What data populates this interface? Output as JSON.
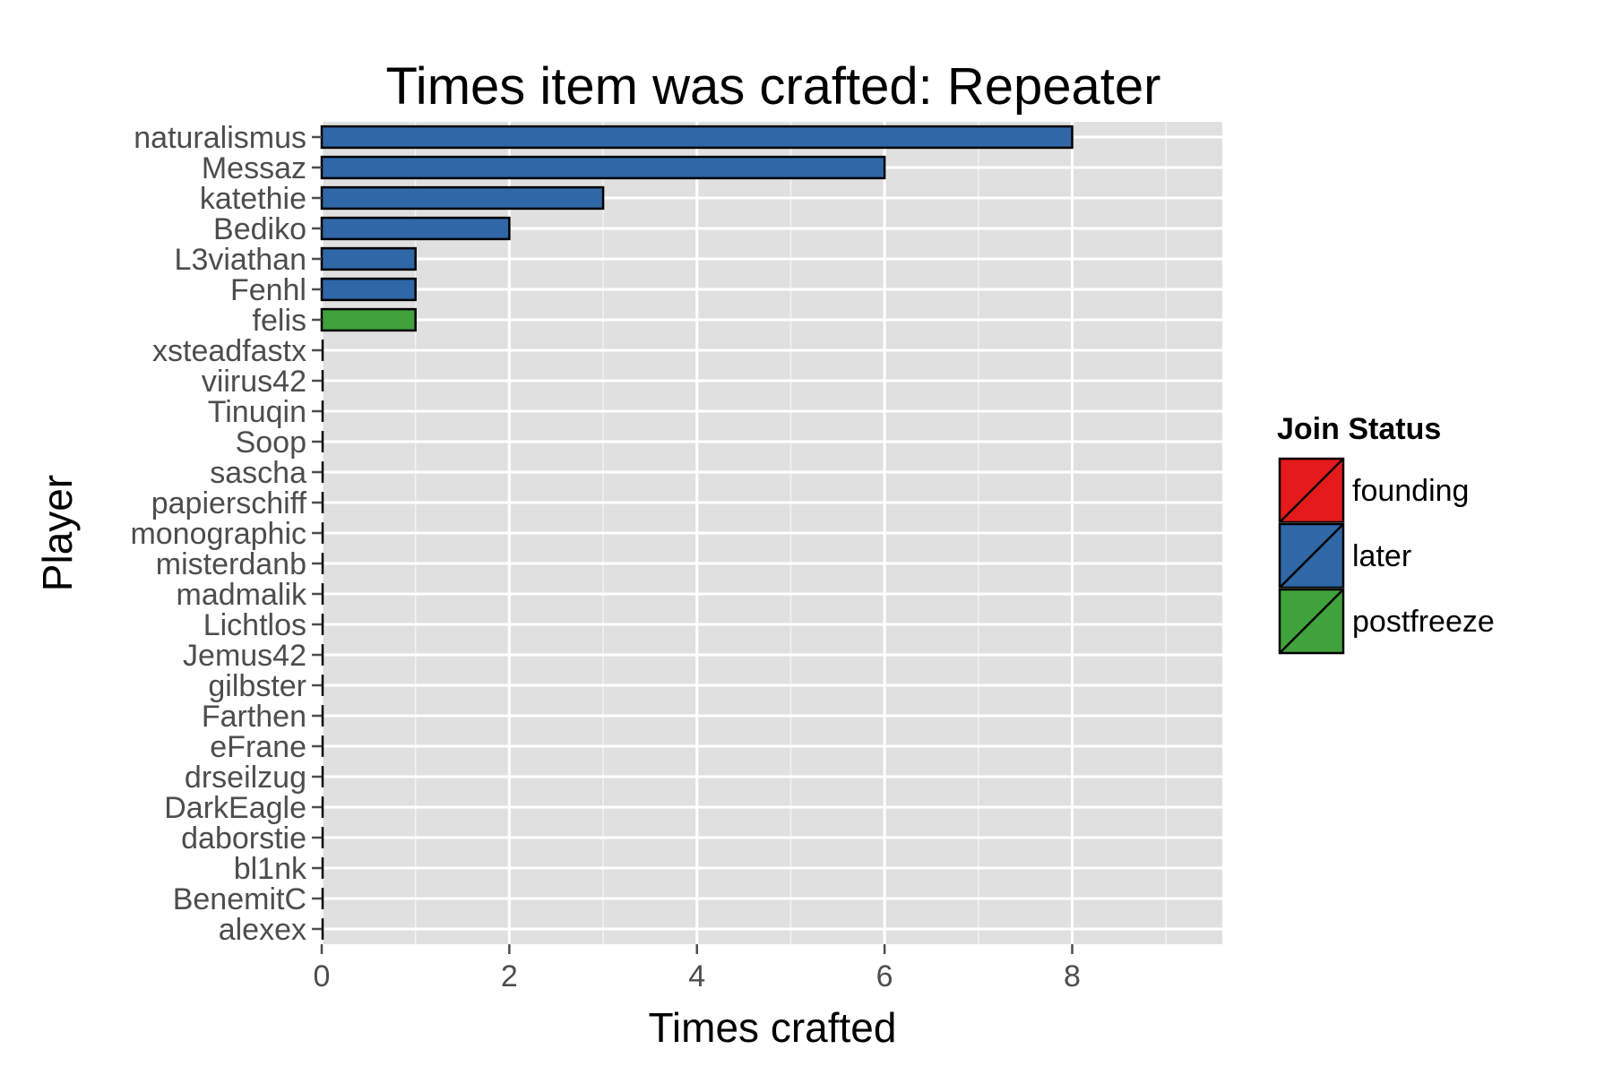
{
  "chart_data": {
    "type": "bar",
    "orientation": "horizontal",
    "title": "Times item was crafted: Repeater",
    "xlabel": "Times crafted",
    "ylabel": "Player",
    "xlim": [
      0,
      9.6
    ],
    "xticks": [
      0,
      2,
      4,
      6,
      8
    ],
    "grid": true,
    "legend_placement": "right",
    "legend_title": "Join Status",
    "groups": [
      {
        "name": "founding",
        "color": "#E41A1C"
      },
      {
        "name": "later",
        "color": "#2F67A7"
      },
      {
        "name": "postfreeze",
        "color": "#3FA23A"
      }
    ],
    "categories": [
      "naturalismus",
      "Messaz",
      "katethie",
      "Bediko",
      "L3viathan",
      "Fenhl",
      "felis",
      "xsteadfastx",
      "viirus42",
      "Tinuqin",
      "Soop",
      "sascha",
      "papierschiff",
      "monographic",
      "misterdanb",
      "madmalik",
      "Lichtlos",
      "Jemus42",
      "gilbster",
      "Farthen",
      "eFrane",
      "drseilzug",
      "DarkEagle",
      "daborstie",
      "bl1nk",
      "BenemitC",
      "alexex"
    ],
    "values": [
      8,
      6,
      3,
      2,
      1,
      1,
      1,
      0,
      0,
      0,
      0,
      0,
      0,
      0,
      0,
      0,
      0,
      0,
      0,
      0,
      0,
      0,
      0,
      0,
      0,
      0,
      0
    ],
    "status": [
      "later",
      "later",
      "later",
      "later",
      "later",
      "later",
      "postfreeze",
      "",
      "",
      "",
      "",
      "",
      "",
      "",
      "",
      "",
      "",
      "",
      "",
      "",
      "",
      "",
      "",
      "",
      "",
      "",
      ""
    ]
  }
}
